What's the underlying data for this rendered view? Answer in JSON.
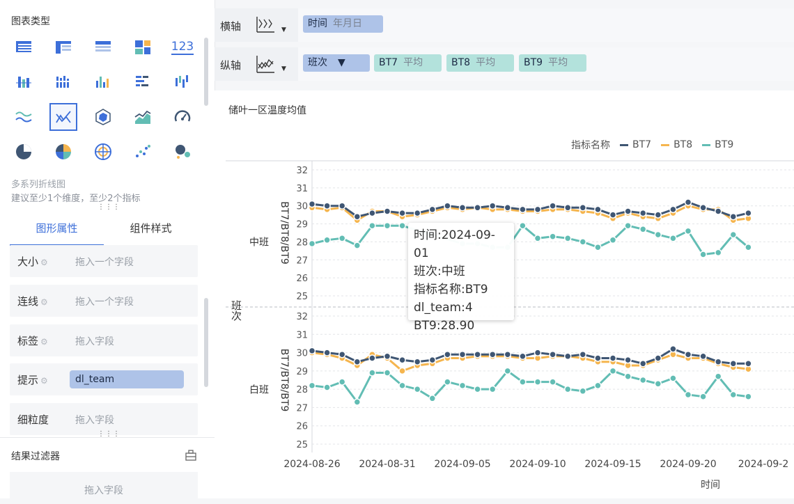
{
  "left_panel": {
    "chart_type_title": "图表类型",
    "chart_types": [
      {
        "icon": "table-icon"
      },
      {
        "icon": "pivot-table-icon"
      },
      {
        "icon": "detail-table-icon"
      },
      {
        "icon": "block-chart-icon"
      },
      {
        "icon": "kpi-number-icon",
        "text": "123"
      },
      {
        "icon": "grouped-bar-icon"
      },
      {
        "icon": "stacked-bar-icon"
      },
      {
        "icon": "column-chart-icon"
      },
      {
        "icon": "horizontal-bar-icon"
      },
      {
        "icon": "range-bar-icon"
      },
      {
        "icon": "wave-line-icon"
      },
      {
        "icon": "multi-line-icon"
      },
      {
        "icon": "radar-icon"
      },
      {
        "icon": "area-chart-icon"
      },
      {
        "icon": "gauge-icon"
      },
      {
        "icon": "pie-chart-icon"
      },
      {
        "icon": "rose-pie-icon"
      },
      {
        "icon": "target-icon"
      },
      {
        "icon": "scatter-icon"
      },
      {
        "icon": "bubble-icon"
      }
    ],
    "selected_type_name": "多系列折线图",
    "selected_type_hint": "建议至少1个维度，至少2个指标",
    "tabs": [
      "图形属性",
      "组件样式"
    ],
    "props": [
      {
        "label": "大小",
        "placeholder": "拖入一个字段"
      },
      {
        "label": "连线",
        "placeholder": "拖入一个字段"
      },
      {
        "label": "标签",
        "placeholder": "拖入字段"
      },
      {
        "label": "提示",
        "value": "dl_team"
      },
      {
        "label": "细粒度",
        "placeholder": "拖入字段"
      }
    ],
    "result_filter_title": "结果过滤器",
    "result_filter_placeholder": "拖入字段"
  },
  "shelves": {
    "x_label": "横轴",
    "x_pill": {
      "field": "时间",
      "agg": "年月日"
    },
    "y_label": "纵轴",
    "y_pills": [
      {
        "field": "班次",
        "agg": "",
        "filter_icon": "filter-icon",
        "color": "#aec3e8"
      },
      {
        "field": "BT7",
        "agg": "平均",
        "color": "#b3e2dc"
      },
      {
        "field": "BT8",
        "agg": "平均",
        "color": "#b3e2dc"
      },
      {
        "field": "BT9",
        "agg": "平均",
        "color": "#b3e2dc"
      }
    ]
  },
  "tooltip": {
    "lines": [
      "时间:2024-09-01",
      "班次:中班",
      "指标名称:BT9",
      "dl_team:4",
      "BT9:28.90"
    ]
  },
  "colors": {
    "BT7": "#3f5673",
    "BT8": "#f5b54e",
    "BT9": "#62bdb4",
    "accent": "#3d6fd9"
  },
  "chart_data": {
    "type": "line",
    "title": "储叶一区温度均值",
    "legend_title": "指标名称",
    "legend_position": "top-right",
    "xlabel": "时间",
    "row_dimension_label": "班次",
    "ylabel": "BT7/BT8/BT9",
    "x_ticks": [
      "2024-08-26",
      "2024-08-31",
      "2024-09-05",
      "2024-09-10",
      "2024-09-15",
      "2024-09-20",
      "2024-09-2"
    ],
    "x_start": "2024-08-26",
    "x_end_visible": "2024-09-24",
    "ylim": [
      25,
      32
    ],
    "y_ticks": [
      25,
      26,
      27,
      28,
      29,
      30,
      31,
      32
    ],
    "grid": true,
    "panels": [
      {
        "name": "中班",
        "series": [
          {
            "name": "BT7",
            "values": [
              [
                "2024-08-26",
                30.1
              ],
              [
                "2024-08-27",
                30.0
              ],
              [
                "2024-08-28",
                30.0
              ],
              [
                "2024-08-29",
                29.4
              ],
              [
                "2024-08-30",
                29.6
              ],
              [
                "2024-08-31",
                29.7
              ],
              [
                "2024-09-01",
                29.6
              ],
              [
                "2024-09-02",
                29.6
              ],
              [
                "2024-09-03",
                29.8
              ],
              [
                "2024-09-04",
                30.0
              ],
              [
                "2024-09-05",
                29.9
              ],
              [
                "2024-09-06",
                29.9
              ],
              [
                "2024-09-07",
                30.0
              ],
              [
                "2024-09-08",
                29.9
              ],
              [
                "2024-09-09",
                29.8
              ],
              [
                "2024-09-10",
                29.8
              ],
              [
                "2024-09-11",
                30.0
              ],
              [
                "2024-09-12",
                29.9
              ],
              [
                "2024-09-13",
                29.9
              ],
              [
                "2024-09-14",
                29.8
              ],
              [
                "2024-09-15",
                29.5
              ],
              [
                "2024-09-16",
                29.7
              ],
              [
                "2024-09-17",
                29.6
              ],
              [
                "2024-09-18",
                29.5
              ],
              [
                "2024-09-19",
                29.8
              ],
              [
                "2024-09-20",
                30.2
              ],
              [
                "2024-09-21",
                29.9
              ],
              [
                "2024-09-22",
                29.7
              ],
              [
                "2024-09-23",
                29.4
              ],
              [
                "2024-09-24",
                29.6
              ]
            ]
          },
          {
            "name": "BT8",
            "values": [
              [
                "2024-08-26",
                29.9
              ],
              [
                "2024-08-27",
                29.8
              ],
              [
                "2024-08-28",
                29.9
              ],
              [
                "2024-08-29",
                29.2
              ],
              [
                "2024-08-30",
                29.7
              ],
              [
                "2024-08-31",
                29.7
              ],
              [
                "2024-09-01",
                29.4
              ],
              [
                "2024-09-02",
                29.5
              ],
              [
                "2024-09-03",
                29.7
              ],
              [
                "2024-09-04",
                29.9
              ],
              [
                "2024-09-05",
                29.8
              ],
              [
                "2024-09-06",
                29.9
              ],
              [
                "2024-09-07",
                29.8
              ],
              [
                "2024-09-08",
                29.8
              ],
              [
                "2024-09-09",
                29.7
              ],
              [
                "2024-09-10",
                29.7
              ],
              [
                "2024-09-11",
                29.8
              ],
              [
                "2024-09-12",
                29.8
              ],
              [
                "2024-09-13",
                29.7
              ],
              [
                "2024-09-14",
                29.6
              ],
              [
                "2024-09-15",
                29.3
              ],
              [
                "2024-09-16",
                29.6
              ],
              [
                "2024-09-17",
                29.4
              ],
              [
                "2024-09-18",
                29.3
              ],
              [
                "2024-09-19",
                29.6
              ],
              [
                "2024-09-20",
                30.0
              ],
              [
                "2024-09-21",
                29.8
              ],
              [
                "2024-09-22",
                29.8
              ],
              [
                "2024-09-23",
                29.2
              ],
              [
                "2024-09-24",
                29.3
              ]
            ]
          },
          {
            "name": "BT9",
            "values": [
              [
                "2024-08-26",
                27.9
              ],
              [
                "2024-08-27",
                28.1
              ],
              [
                "2024-08-28",
                28.2
              ],
              [
                "2024-08-29",
                27.8
              ],
              [
                "2024-08-30",
                28.9
              ],
              [
                "2024-08-31",
                28.9
              ],
              [
                "2024-09-01",
                28.9
              ],
              [
                "2024-09-05",
                27.9
              ],
              [
                "2024-09-06",
                27.9
              ],
              [
                "2024-09-07",
                27.7
              ],
              [
                "2024-09-08",
                27.7
              ],
              [
                "2024-09-09",
                28.9
              ],
              [
                "2024-09-10",
                28.2
              ],
              [
                "2024-09-11",
                28.3
              ],
              [
                "2024-09-12",
                28.2
              ],
              [
                "2024-09-13",
                28.0
              ],
              [
                "2024-09-14",
                27.7
              ],
              [
                "2024-09-15",
                28.1
              ],
              [
                "2024-09-16",
                28.9
              ],
              [
                "2024-09-17",
                28.7
              ],
              [
                "2024-09-18",
                28.4
              ],
              [
                "2024-09-19",
                28.2
              ],
              [
                "2024-09-20",
                28.6
              ],
              [
                "2024-09-21",
                27.3
              ],
              [
                "2024-09-22",
                27.4
              ],
              [
                "2024-09-23",
                28.4
              ],
              [
                "2024-09-24",
                27.7
              ]
            ]
          }
        ]
      },
      {
        "name": "白班",
        "series": [
          {
            "name": "BT7",
            "values": [
              [
                "2024-08-26",
                30.1
              ],
              [
                "2024-08-27",
                30.0
              ],
              [
                "2024-08-28",
                29.9
              ],
              [
                "2024-08-29",
                29.5
              ],
              [
                "2024-08-30",
                29.7
              ],
              [
                "2024-08-31",
                29.8
              ],
              [
                "2024-09-01",
                29.6
              ],
              [
                "2024-09-02",
                29.5
              ],
              [
                "2024-09-03",
                29.6
              ],
              [
                "2024-09-04",
                29.9
              ],
              [
                "2024-09-05",
                29.9
              ],
              [
                "2024-09-06",
                29.9
              ],
              [
                "2024-09-07",
                29.9
              ],
              [
                "2024-09-08",
                29.9
              ],
              [
                "2024-09-09",
                29.8
              ],
              [
                "2024-09-10",
                30.0
              ],
              [
                "2024-09-11",
                29.9
              ],
              [
                "2024-09-12",
                29.8
              ],
              [
                "2024-09-13",
                29.9
              ],
              [
                "2024-09-14",
                29.7
              ],
              [
                "2024-09-15",
                29.7
              ],
              [
                "2024-09-16",
                29.6
              ],
              [
                "2024-09-17",
                29.4
              ],
              [
                "2024-09-18",
                29.7
              ],
              [
                "2024-09-19",
                30.2
              ],
              [
                "2024-09-20",
                29.9
              ],
              [
                "2024-09-21",
                29.8
              ],
              [
                "2024-09-22",
                29.5
              ],
              [
                "2024-09-23",
                29.4
              ],
              [
                "2024-09-24",
                29.4
              ]
            ]
          },
          {
            "name": "BT8",
            "values": [
              [
                "2024-08-26",
                30.0
              ],
              [
                "2024-08-27",
                29.9
              ],
              [
                "2024-08-28",
                29.7
              ],
              [
                "2024-08-29",
                29.3
              ],
              [
                "2024-08-30",
                29.9
              ],
              [
                "2024-08-31",
                29.7
              ],
              [
                "2024-09-01",
                29.0
              ],
              [
                "2024-09-02",
                29.3
              ],
              [
                "2024-09-03",
                29.4
              ],
              [
                "2024-09-04",
                29.7
              ],
              [
                "2024-09-05",
                29.7
              ],
              [
                "2024-09-06",
                29.8
              ],
              [
                "2024-09-07",
                29.8
              ],
              [
                "2024-09-08",
                29.8
              ],
              [
                "2024-09-09",
                29.7
              ],
              [
                "2024-09-10",
                29.7
              ],
              [
                "2024-09-11",
                29.8
              ],
              [
                "2024-09-12",
                29.8
              ],
              [
                "2024-09-13",
                29.7
              ],
              [
                "2024-09-14",
                29.5
              ],
              [
                "2024-09-15",
                29.5
              ],
              [
                "2024-09-16",
                29.3
              ],
              [
                "2024-09-17",
                29.3
              ],
              [
                "2024-09-18",
                29.6
              ],
              [
                "2024-09-19",
                29.9
              ],
              [
                "2024-09-20",
                29.7
              ],
              [
                "2024-09-21",
                29.7
              ],
              [
                "2024-09-22",
                29.4
              ],
              [
                "2024-09-23",
                29.2
              ],
              [
                "2024-09-24",
                29.1
              ]
            ]
          },
          {
            "name": "BT9",
            "values": [
              [
                "2024-08-26",
                28.2
              ],
              [
                "2024-08-27",
                28.1
              ],
              [
                "2024-08-28",
                28.4
              ],
              [
                "2024-08-29",
                27.3
              ],
              [
                "2024-08-30",
                28.9
              ],
              [
                "2024-08-31",
                28.9
              ],
              [
                "2024-09-01",
                28.2
              ],
              [
                "2024-09-02",
                28.0
              ],
              [
                "2024-09-03",
                27.5
              ],
              [
                "2024-09-04",
                28.4
              ],
              [
                "2024-09-05",
                28.2
              ],
              [
                "2024-09-06",
                28.0
              ],
              [
                "2024-09-07",
                28.0
              ],
              [
                "2024-09-08",
                29.0
              ],
              [
                "2024-09-09",
                28.4
              ],
              [
                "2024-09-10",
                28.4
              ],
              [
                "2024-09-11",
                28.4
              ],
              [
                "2024-09-12",
                28.0
              ],
              [
                "2024-09-13",
                27.9
              ],
              [
                "2024-09-14",
                28.2
              ],
              [
                "2024-09-15",
                29.0
              ],
              [
                "2024-09-16",
                28.7
              ],
              [
                "2024-09-17",
                28.5
              ],
              [
                "2024-09-18",
                28.3
              ],
              [
                "2024-09-19",
                28.6
              ],
              [
                "2024-09-20",
                27.7
              ],
              [
                "2024-09-21",
                27.6
              ],
              [
                "2024-09-22",
                28.7
              ],
              [
                "2024-09-23",
                27.7
              ],
              [
                "2024-09-24",
                27.6
              ]
            ]
          }
        ]
      }
    ]
  }
}
